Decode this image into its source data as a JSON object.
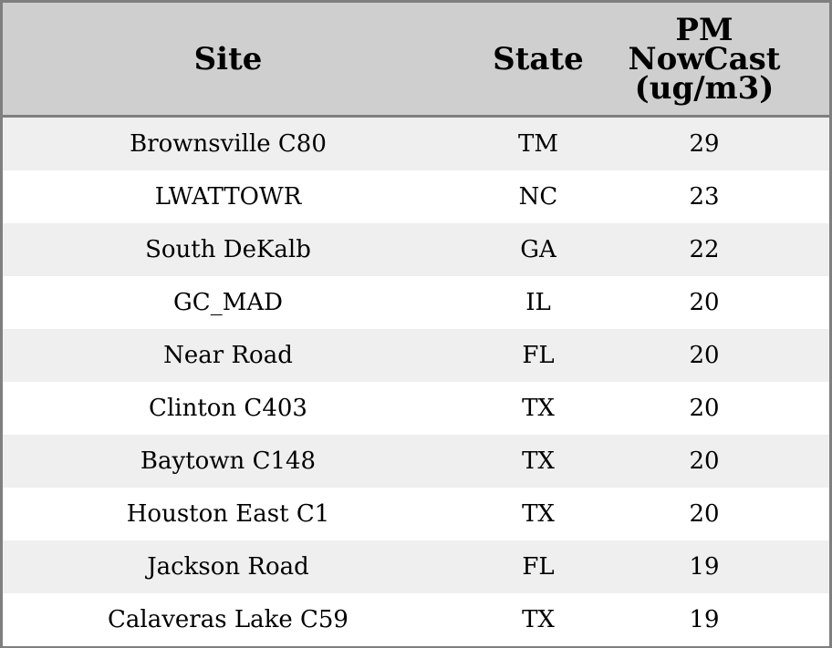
{
  "table": {
    "headers": {
      "site": "Site",
      "state": "State",
      "pm": [
        "PM",
        "NowCast",
        "(ug/m3)"
      ]
    },
    "rows": [
      {
        "site": "Brownsville C80",
        "state": "TM",
        "pm": "29"
      },
      {
        "site": "LWATTOWR",
        "state": "NC",
        "pm": "23"
      },
      {
        "site": "South DeKalb",
        "state": "GA",
        "pm": "22"
      },
      {
        "site": "GC_MAD",
        "state": "IL",
        "pm": "20"
      },
      {
        "site": "Near Road",
        "state": "FL",
        "pm": "20"
      },
      {
        "site": "Clinton C403",
        "state": "TX",
        "pm": "20"
      },
      {
        "site": "Baytown C148",
        "state": "TX",
        "pm": "20"
      },
      {
        "site": "Houston East C1",
        "state": "TX",
        "pm": "20"
      },
      {
        "site": "Jackson Road",
        "state": "FL",
        "pm": "19"
      },
      {
        "site": "Calaveras Lake C59",
        "state": "TX",
        "pm": "19"
      }
    ]
  },
  "colors": {
    "header_bg": "#cfcfcf",
    "row_shaded": "#efefef",
    "row_plain": "#ffffff",
    "border": "#7f7f7f"
  }
}
